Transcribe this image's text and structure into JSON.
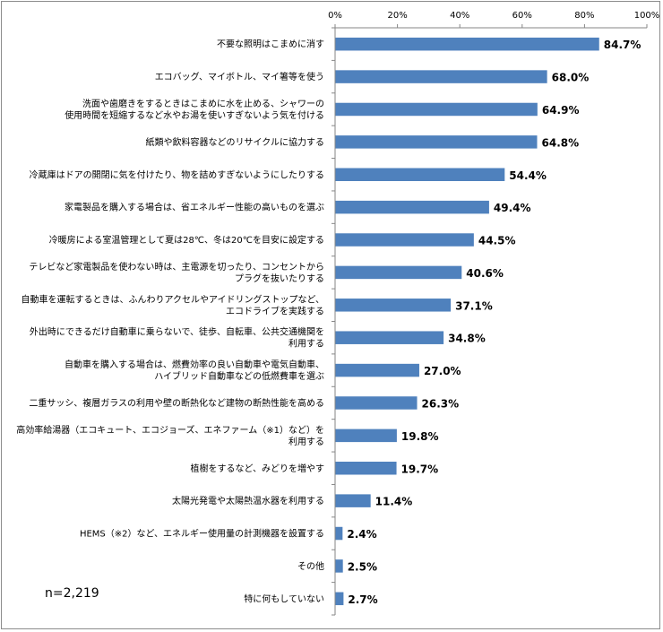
{
  "note": "n=2,219",
  "chart_data": {
    "type": "bar",
    "orientation": "horizontal",
    "title": "",
    "xlabel": "",
    "ylabel": "",
    "xlim": [
      0,
      100
    ],
    "x_ticks": [
      "0%",
      "20%",
      "40%",
      "60%",
      "80%",
      "100%"
    ],
    "grid": false,
    "legend": "none",
    "bar_color": "#4f81bd",
    "categories": [
      [
        "不要な照明はこまめに消す"
      ],
      [
        "エコバッグ、マイボトル、マイ箸等を使う"
      ],
      [
        "洗面や歯磨きをするときはこまめに水を止める、シャワーの",
        "使用時間を短縮するなど水やお湯を使いすぎないよう気を付ける"
      ],
      [
        "紙類や飲料容器などのリサイクルに協力する"
      ],
      [
        "冷蔵庫はドアの開閉に気を付けたり、物を詰めすぎないようにしたりする"
      ],
      [
        "家電製品を購入する場合は、省エネルギー性能の高いものを選ぶ"
      ],
      [
        "冷暖房による室温管理として夏は28℃、冬は20℃を目安に設定する"
      ],
      [
        "テレビなど家電製品を使わない時は、主電源を切ったり、コンセントから",
        "プラグを抜いたりする"
      ],
      [
        "自動車を運転するときは、ふんわりアクセルやアイドリングストップなど、",
        "エコドライブを実践する"
      ],
      [
        "外出時にできるだけ自動車に乗らないで、徒歩、自転車、公共交通機関を",
        "利用する"
      ],
      [
        "自動車を購入する場合は、燃費効率の良い自動車や電気自動車、",
        "ハイブリッド自動車などの低燃費車を選ぶ"
      ],
      [
        "二重サッシ、複層ガラスの利用や壁の断熱化など建物の断熱性能を高める"
      ],
      [
        "高効率給湯器（エコキュート、エコジョーズ、エネファーム（※1）など）を",
        "利用する"
      ],
      [
        "植樹をするなど、みどりを増やす"
      ],
      [
        "太陽光発電や太陽熱温水器を利用する"
      ],
      [
        "HEMS（※2）など、エネルギー使用量の計測機器を設置する"
      ],
      [
        "その他"
      ],
      [
        "特に何もしていない"
      ]
    ],
    "values": [
      84.7,
      68.0,
      64.9,
      64.8,
      54.4,
      49.4,
      44.5,
      40.6,
      37.1,
      34.8,
      27.0,
      26.3,
      19.8,
      19.7,
      11.4,
      2.4,
      2.5,
      2.7
    ],
    "value_labels": [
      "84.7%",
      "68.0%",
      "64.9%",
      "64.8%",
      "54.4%",
      "49.4%",
      "44.5%",
      "40.6%",
      "37.1%",
      "34.8%",
      "27.0%",
      "26.3%",
      "19.8%",
      "19.7%",
      "11.4%",
      "2.4%",
      "2.5%",
      "2.7%"
    ]
  }
}
